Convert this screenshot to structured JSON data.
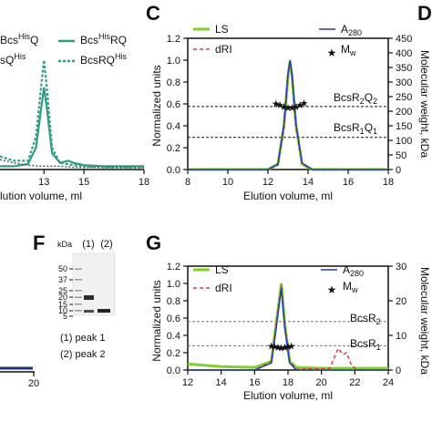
{
  "panels": {
    "B": {
      "xlabel": "lution volume, ml",
      "xticks": [
        "13",
        "15",
        "18"
      ],
      "legend": [
        "Bcs",
        "His",
        "Q",
        "Bcs",
        "His",
        "RQ",
        "sQ",
        "His",
        "BcsRQ",
        "His"
      ]
    },
    "C": {
      "letter": "C",
      "ylabel": "Normalized units",
      "y2label": "Molecular weight, kDa",
      "xlabel": "Elution volume, ml",
      "yticks": [
        "0.0",
        "0.2",
        "0.4",
        "0.6",
        "0.8",
        "1.0",
        "1.2"
      ],
      "y2ticks": [
        "0",
        "50",
        "100",
        "150",
        "200",
        "250",
        "300",
        "350",
        "400",
        "450"
      ],
      "xticks": [
        "8",
        "10",
        "12",
        "14",
        "16",
        "18"
      ],
      "legend": [
        "LS",
        "dRI",
        "A",
        "280",
        "M",
        "w"
      ],
      "annotations": [
        "BcsR",
        "2",
        "Q",
        "2",
        "BcsR",
        "1",
        "Q",
        "1"
      ]
    },
    "D": {
      "letter": "D"
    },
    "F": {
      "letter": "F",
      "unit": "kDa",
      "lanes": [
        "(1)",
        "(2)"
      ],
      "markers": [
        "50",
        "37",
        "25",
        "20",
        "15",
        "10",
        "5"
      ],
      "caption": [
        "(1) peak 1",
        "(2) peak 2"
      ]
    },
    "G": {
      "letter": "G",
      "ylabel": "Normalized units",
      "y2label": "Molecular weight, kDa",
      "xlabel": "Elution volume, ml",
      "yticks": [
        "0.0",
        "0.2",
        "0.4",
        "0.6",
        "0.8",
        "1.0",
        "1.2"
      ],
      "y2ticks": [
        "0",
        "10",
        "20",
        "30"
      ],
      "xticks": [
        "12",
        "14",
        "16",
        "18",
        "20",
        "22",
        "24"
      ],
      "legend": [
        "LS",
        "dRI",
        "A",
        "280",
        "M",
        "w"
      ],
      "annotations": [
        "BcsR",
        "2",
        "BcsR",
        "1"
      ]
    },
    "E": {
      "xticks": [
        "20"
      ]
    }
  },
  "colors": {
    "teal": "#2e9e84",
    "green": "#7ed321",
    "red": "#e53935",
    "blue": "#1f3fc4",
    "maroon": "#8b1a3a",
    "darkblue": "#1d2f8a"
  },
  "chart_data": [
    {
      "type": "line",
      "panel": "B",
      "xlabel": "lution volume, ml",
      "xlim": [
        10.8,
        18
      ],
      "series": [
        {
          "name": "BcsRQ",
          "x": [
            10.8,
            11.5,
            12.2,
            12.6,
            12.85,
            13.0,
            13.15,
            13.4,
            13.8,
            14.2,
            14.5,
            15,
            16,
            18
          ],
          "y": [
            0.03,
            0.03,
            0.05,
            0.2,
            0.55,
            0.75,
            0.55,
            0.15,
            0.06,
            0.08,
            0.06,
            0.04,
            0.03,
            0.03
          ]
        },
        {
          "name": "BcsRQ",
          "x": [
            10.8,
            11.5,
            12.2,
            12.6,
            12.85,
            13.0,
            13.15,
            13.4,
            13.8,
            14.2,
            14.5,
            15,
            16,
            18
          ],
          "y": [
            0.12,
            0.08,
            0.08,
            0.3,
            0.75,
            1.0,
            0.72,
            0.2,
            0.06,
            0.05,
            0.04,
            0.03,
            0.02,
            0.02
          ]
        },
        {
          "name": "",
          "x": [
            10.8,
            11.5,
            12.2,
            12.8,
            13.2,
            13.8,
            14.5,
            15.5,
            18
          ],
          "y": [
            0.09,
            0.06,
            0.04,
            0.03,
            0.03,
            0.03,
            0.02,
            0.02,
            0.02
          ]
        }
      ]
    },
    {
      "type": "line",
      "panel": "C",
      "xlabel": "Elution volume, ml",
      "ylabel": "Normalized units",
      "y2label": "Molecular weight, kDa",
      "xlim": [
        8,
        18
      ],
      "ylim": [
        0,
        1.2
      ],
      "y2lim": [
        0,
        450
      ],
      "series": [
        {
          "name": "LS",
          "x": [
            8,
            12.0,
            12.5,
            12.8,
            13.0,
            13.1,
            13.2,
            13.4,
            13.7,
            14.2,
            18
          ],
          "y": [
            0.0,
            0.0,
            0.05,
            0.4,
            0.85,
            0.99,
            0.85,
            0.4,
            0.05,
            0.0,
            0.0
          ]
        },
        {
          "name": "dRI",
          "x": [
            8,
            12.0,
            12.5,
            12.8,
            13.0,
            13.1,
            13.2,
            13.4,
            13.7,
            14.2,
            18
          ],
          "y": [
            0.0,
            0.0,
            0.04,
            0.38,
            0.84,
            0.98,
            0.84,
            0.38,
            0.05,
            0.0,
            0.0
          ]
        },
        {
          "name": "A280",
          "x": [
            8,
            12.0,
            12.5,
            12.8,
            13.0,
            13.1,
            13.2,
            13.4,
            13.7,
            14.2,
            18
          ],
          "y": [
            0.0,
            0.0,
            0.05,
            0.42,
            0.88,
            1.0,
            0.88,
            0.42,
            0.06,
            0.0,
            0.0
          ]
        },
        {
          "name": "Mw",
          "axis": "y2",
          "marker": "star",
          "x": [
            12.4,
            12.6,
            12.8,
            13.0,
            13.2,
            13.4,
            13.6,
            13.8
          ],
          "y": [
            227,
            222,
            216,
            212,
            213,
            216,
            222,
            228
          ]
        }
      ],
      "reference_lines": [
        {
          "label": "BcsR2Q2",
          "y2": 216
        },
        {
          "label": "BcsR1Q1",
          "y2": 110
        }
      ]
    },
    {
      "type": "line",
      "panel": "G",
      "xlabel": "Elution volume, ml",
      "ylabel": "Normalized units",
      "y2label": "Molecular weight, kDa",
      "xlim": [
        12,
        24
      ],
      "ylim": [
        0,
        1.2
      ],
      "y2lim": [
        0,
        30
      ],
      "series": [
        {
          "name": "LS",
          "x": [
            12,
            14,
            16,
            17.0,
            17.3,
            17.6,
            17.8,
            18.1,
            18.5,
            20,
            22,
            24
          ],
          "y": [
            0.07,
            0.04,
            0.03,
            0.1,
            0.55,
            1.0,
            0.55,
            0.1,
            0.03,
            0.02,
            0.02,
            0.02
          ]
        },
        {
          "name": "dRI",
          "x": [
            12,
            14,
            16,
            17.0,
            17.3,
            17.6,
            17.8,
            18.1,
            18.5,
            20.5,
            21.0,
            21.3,
            21.5,
            21.8,
            22.2,
            24
          ],
          "y": [
            0.0,
            0.0,
            0.0,
            0.1,
            0.55,
            0.98,
            0.55,
            0.1,
            0.01,
            0.02,
            0.25,
            0.18,
            0.2,
            0.05,
            0.0,
            0.0
          ]
        },
        {
          "name": "A280",
          "x": [
            12,
            16,
            17.0,
            17.3,
            17.6,
            17.8,
            18.1,
            18.5,
            24
          ],
          "y": [
            0.0,
            0.0,
            0.08,
            0.5,
            0.95,
            0.5,
            0.08,
            0.0,
            0.0
          ]
        },
        {
          "name": "Mw",
          "axis": "y2",
          "marker": "star",
          "x": [
            17.0,
            17.2,
            17.4,
            17.6,
            17.8,
            18.0,
            18.2
          ],
          "y": [
            7.0,
            6.8,
            6.6,
            6.5,
            6.6,
            6.8,
            7.0
          ]
        }
      ],
      "reference_lines": [
        {
          "label": "BcsR2",
          "y2": 14.0
        },
        {
          "label": "BcsR1",
          "y2": 7.0
        }
      ]
    }
  ]
}
